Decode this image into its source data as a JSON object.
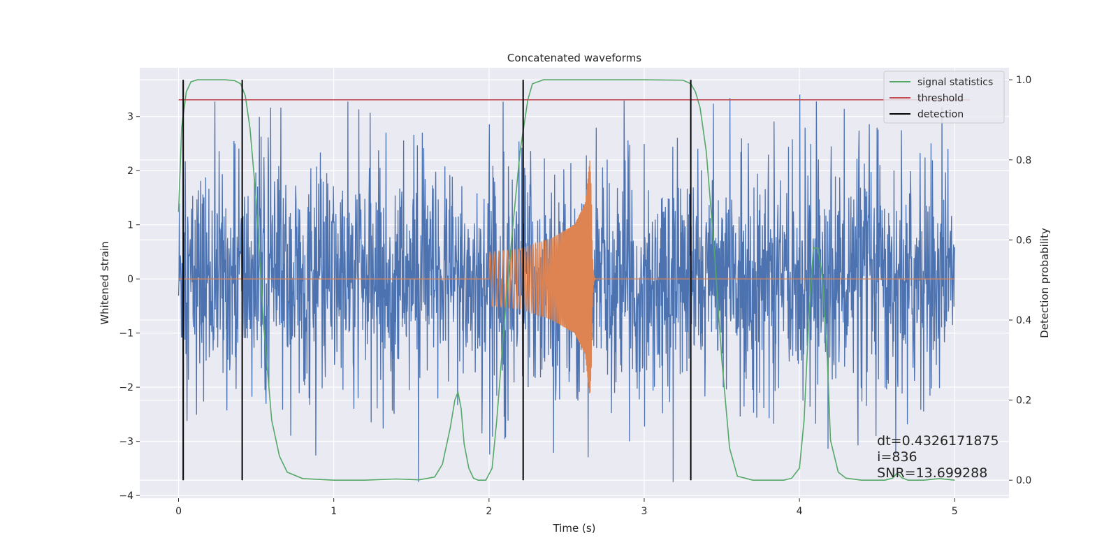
{
  "chart_data": {
    "type": "line",
    "title": "Concatenated waveforms",
    "xlabel": "Time (s)",
    "ylabel": "Whitened strain",
    "y2label": "Detection probability",
    "xlim": [
      -0.25,
      5.35
    ],
    "ylim": [
      -4.05,
      3.9
    ],
    "y2lim": [
      -0.045,
      1.03
    ],
    "xticks": [
      0,
      1,
      2,
      3,
      4,
      5
    ],
    "xtick_labels": [
      "0",
      "1",
      "2",
      "3",
      "4",
      "5"
    ],
    "yticks": [
      -4,
      -3,
      -2,
      -1,
      0,
      1,
      2,
      3
    ],
    "ytick_labels": [
      "−4",
      "−3",
      "−2",
      "−1",
      "0",
      "1",
      "2",
      "3"
    ],
    "y2ticks": [
      0.0,
      0.2,
      0.4,
      0.6,
      0.8,
      1.0
    ],
    "y2tick_labels": [
      "0.0",
      "0.2",
      "0.4",
      "0.6",
      "0.8",
      "1.0"
    ],
    "grid": true,
    "legend_position": "top-right",
    "legend": [
      {
        "label": "signal statistics",
        "color": "#55a868"
      },
      {
        "label": "threshold",
        "color": "#c44e52"
      },
      {
        "label": "detection",
        "color": "#000000"
      }
    ],
    "series": [
      {
        "name": "whitened strain (noisy data)",
        "axis": "left",
        "color": "#4c72b0",
        "kind": "noise",
        "x_range": [
          0,
          5
        ],
        "baseline": 0,
        "typical_amplitude": 1.0,
        "peak_max": 3.6,
        "peak_min": -3.75
      },
      {
        "name": "injected waveform",
        "axis": "left",
        "color": "#dd8452",
        "kind": "chirp",
        "x_range": [
          0,
          5
        ],
        "start": 2.0,
        "merger": 2.66,
        "envelope": [
          [
            2.0,
            0.5
          ],
          [
            2.2,
            0.55
          ],
          [
            2.4,
            0.75
          ],
          [
            2.55,
            1.0
          ],
          [
            2.62,
            1.4
          ],
          [
            2.65,
            2.2
          ],
          [
            2.66,
            1.6
          ],
          [
            2.68,
            0.1
          ]
        ]
      },
      {
        "name": "signal statistics",
        "axis": "right",
        "color": "#55a868",
        "x": [
          0.0,
          0.02,
          0.05,
          0.08,
          0.12,
          0.2,
          0.3,
          0.36,
          0.4,
          0.43,
          0.46,
          0.5,
          0.55,
          0.6,
          0.65,
          0.7,
          0.8,
          1.0,
          1.2,
          1.4,
          1.55,
          1.65,
          1.7,
          1.75,
          1.78,
          1.8,
          1.82,
          1.84,
          1.87,
          1.9,
          1.93,
          1.98,
          2.02,
          2.05,
          2.1,
          2.15,
          2.2,
          2.25,
          2.28,
          2.35,
          2.5,
          3.0,
          3.25,
          3.3,
          3.33,
          3.36,
          3.4,
          3.45,
          3.5,
          3.55,
          3.6,
          3.7,
          3.9,
          3.95,
          4.0,
          4.03,
          4.06,
          4.09,
          4.12,
          4.15,
          4.18,
          4.2,
          4.25,
          4.3,
          4.4,
          4.55,
          4.6,
          4.63,
          4.66,
          4.7,
          4.8,
          4.9,
          5.0
        ],
        "y": [
          0.67,
          0.88,
          0.97,
          0.995,
          1.0,
          1.0,
          1.0,
          0.998,
          0.99,
          0.96,
          0.88,
          0.7,
          0.38,
          0.15,
          0.06,
          0.02,
          0.004,
          0.0,
          0.0,
          0.003,
          0.001,
          0.008,
          0.04,
          0.13,
          0.2,
          0.22,
          0.18,
          0.09,
          0.03,
          0.005,
          0.0,
          0.0,
          0.03,
          0.15,
          0.4,
          0.62,
          0.82,
          0.95,
          0.99,
          1.0,
          1.0,
          1.0,
          0.999,
          0.99,
          0.97,
          0.93,
          0.82,
          0.58,
          0.3,
          0.08,
          0.01,
          0.0,
          0.0,
          0.005,
          0.03,
          0.15,
          0.4,
          0.58,
          0.58,
          0.5,
          0.3,
          0.1,
          0.02,
          0.005,
          0.0,
          0.0,
          0.005,
          0.018,
          0.006,
          0.0,
          0.0,
          0.004,
          0.0
        ]
      },
      {
        "name": "threshold",
        "axis": "right",
        "color": "#c44e52",
        "x": [
          0,
          5.1
        ],
        "y": [
          0.95,
          0.95
        ]
      }
    ],
    "detections": [
      0.03,
      0.41,
      2.22,
      3.3
    ],
    "detection_range": [
      0.0,
      1.0
    ],
    "annotations": [
      {
        "text": "dt=0.4326171875",
        "x": 4.5,
        "y2": 0.1
      },
      {
        "text": " i=836",
        "x": 4.5,
        "y2": 0.06
      },
      {
        "text": "SNR=13.699288",
        "x": 4.5,
        "y2": 0.02
      }
    ]
  }
}
